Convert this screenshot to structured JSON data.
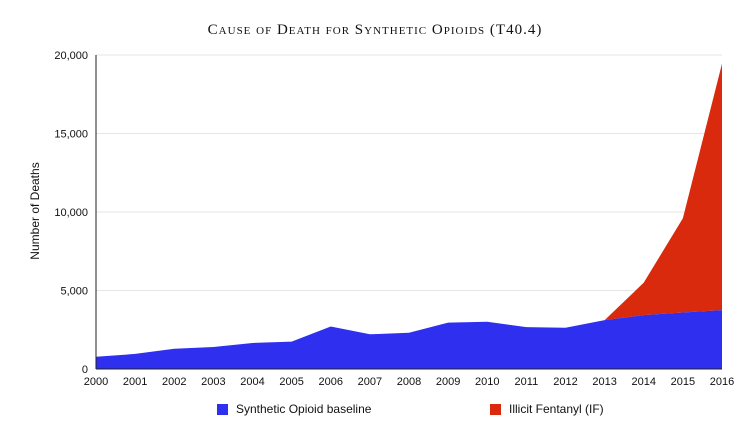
{
  "chart_data": {
    "type": "area",
    "stacked": true,
    "title": "Cause of Death for Synthetic Opioids (T40.4)",
    "xlabel": "",
    "ylabel": "Number of Deaths",
    "x": [
      "2000",
      "2001",
      "2002",
      "2003",
      "2004",
      "2005",
      "2006",
      "2007",
      "2008",
      "2009",
      "2010",
      "2011",
      "2012",
      "2013",
      "2014",
      "2015",
      "2016"
    ],
    "ylim": [
      0,
      20000
    ],
    "yticks": [
      0,
      5000,
      10000,
      15000,
      20000
    ],
    "ytick_labels": [
      "0",
      "5,000",
      "10,000",
      "15,000",
      "20,000"
    ],
    "grid": true,
    "legend_position": "bottom",
    "series": [
      {
        "name": "Synthetic Opioid baseline",
        "color": "#2f2ff0",
        "values": [
          780,
          960,
          1290,
          1400,
          1660,
          1740,
          2710,
          2210,
          2310,
          2950,
          3010,
          2670,
          2630,
          3110,
          3430,
          3600,
          3750
        ]
      },
      {
        "name": "Illicit Fentanyl (IF)",
        "color": "#d92a0e",
        "values": [
          0,
          0,
          0,
          0,
          0,
          0,
          0,
          0,
          0,
          0,
          0,
          0,
          0,
          0,
          2070,
          6000,
          15700
        ]
      }
    ]
  }
}
